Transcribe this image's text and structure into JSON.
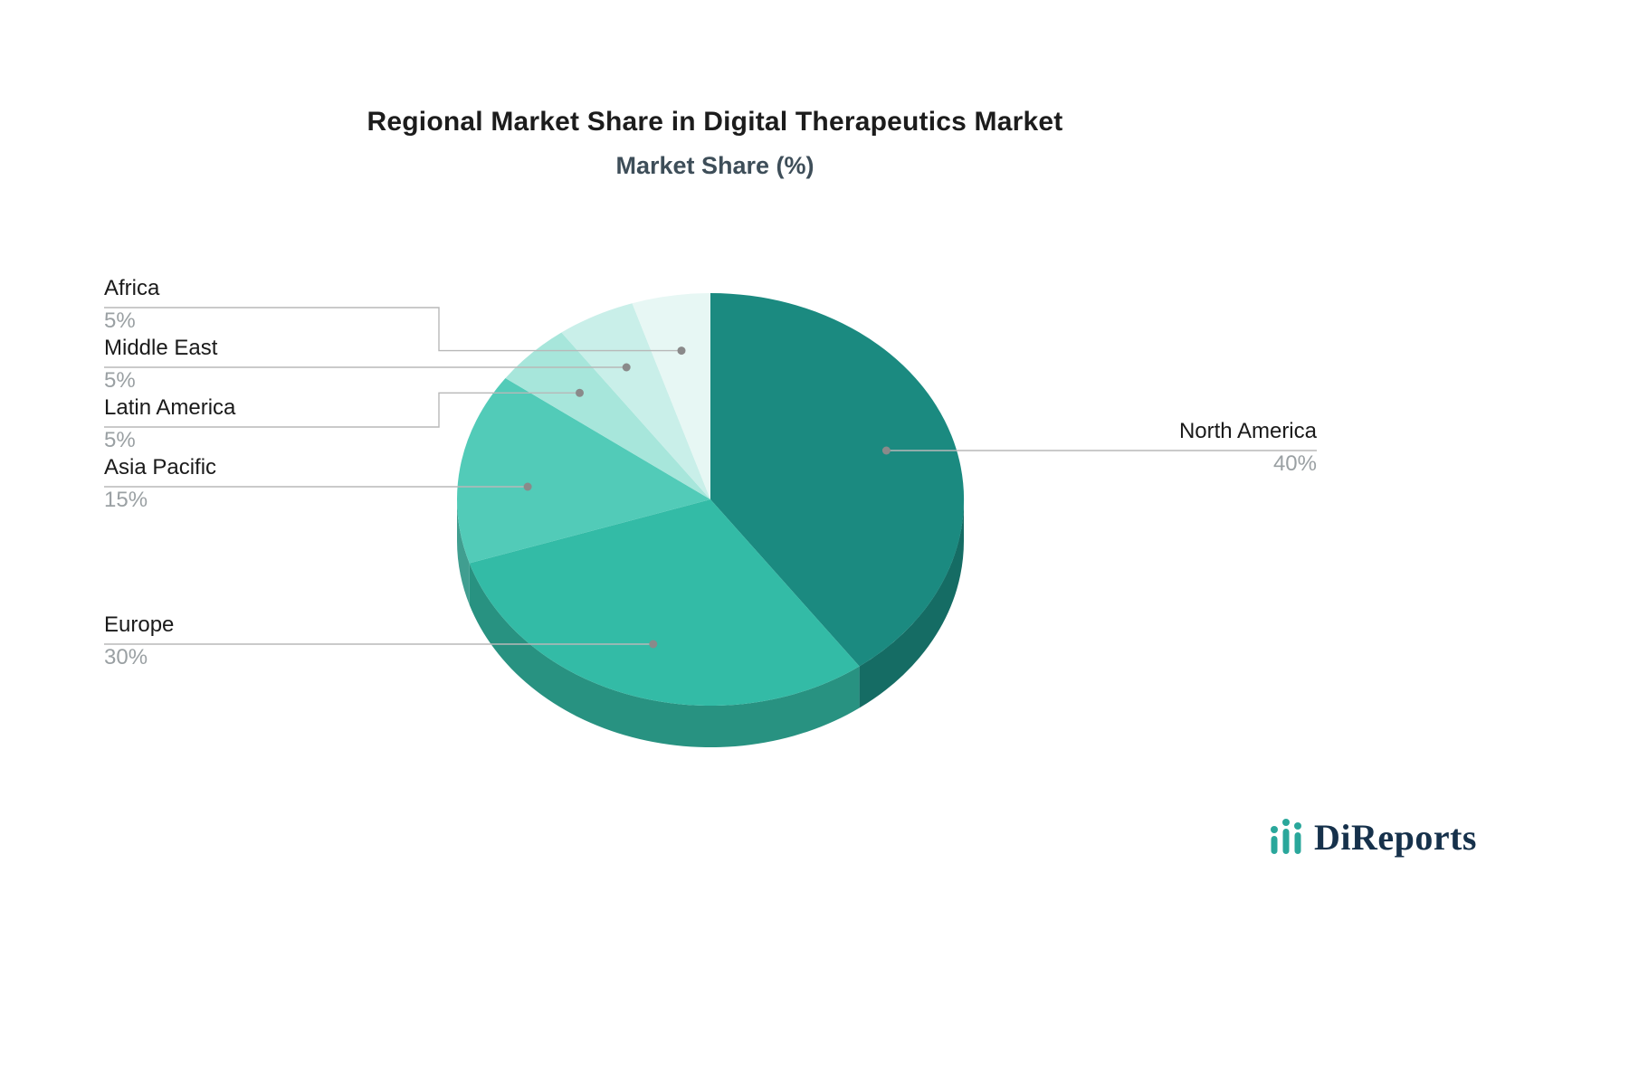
{
  "title": "Regional Market Share in Digital Therapeutics Market",
  "subtitle": "Market Share (%)",
  "logo": {
    "text": "DiReports",
    "icon_color": "#2aa79b",
    "text_color": "#16314b"
  },
  "chart_data": {
    "type": "pie",
    "title": "Regional Market Share in Digital Therapeutics Market",
    "subtitle": "Market Share (%)",
    "unit": "%",
    "start_angle_deg": -90,
    "direction": "clockwise",
    "style": "3d",
    "legend_position": "callout-labels",
    "labels_color": "#1a1a1a",
    "values_color": "#9aa0a3",
    "leader_line_color": "#b8b8b8",
    "leader_dot_color": "#8a8a8a",
    "slices": [
      {
        "label": "North America",
        "value": 40,
        "color": "#1b8a80"
      },
      {
        "label": "Europe",
        "value": 30,
        "color": "#33bba6"
      },
      {
        "label": "Asia Pacific",
        "value": 15,
        "color": "#52cbb8"
      },
      {
        "label": "Latin America",
        "value": 5,
        "color": "#a7e6db"
      },
      {
        "label": "Middle East",
        "value": 5,
        "color": "#c9efe9"
      },
      {
        "label": "Africa",
        "value": 5,
        "color": "#e7f7f4"
      }
    ]
  }
}
